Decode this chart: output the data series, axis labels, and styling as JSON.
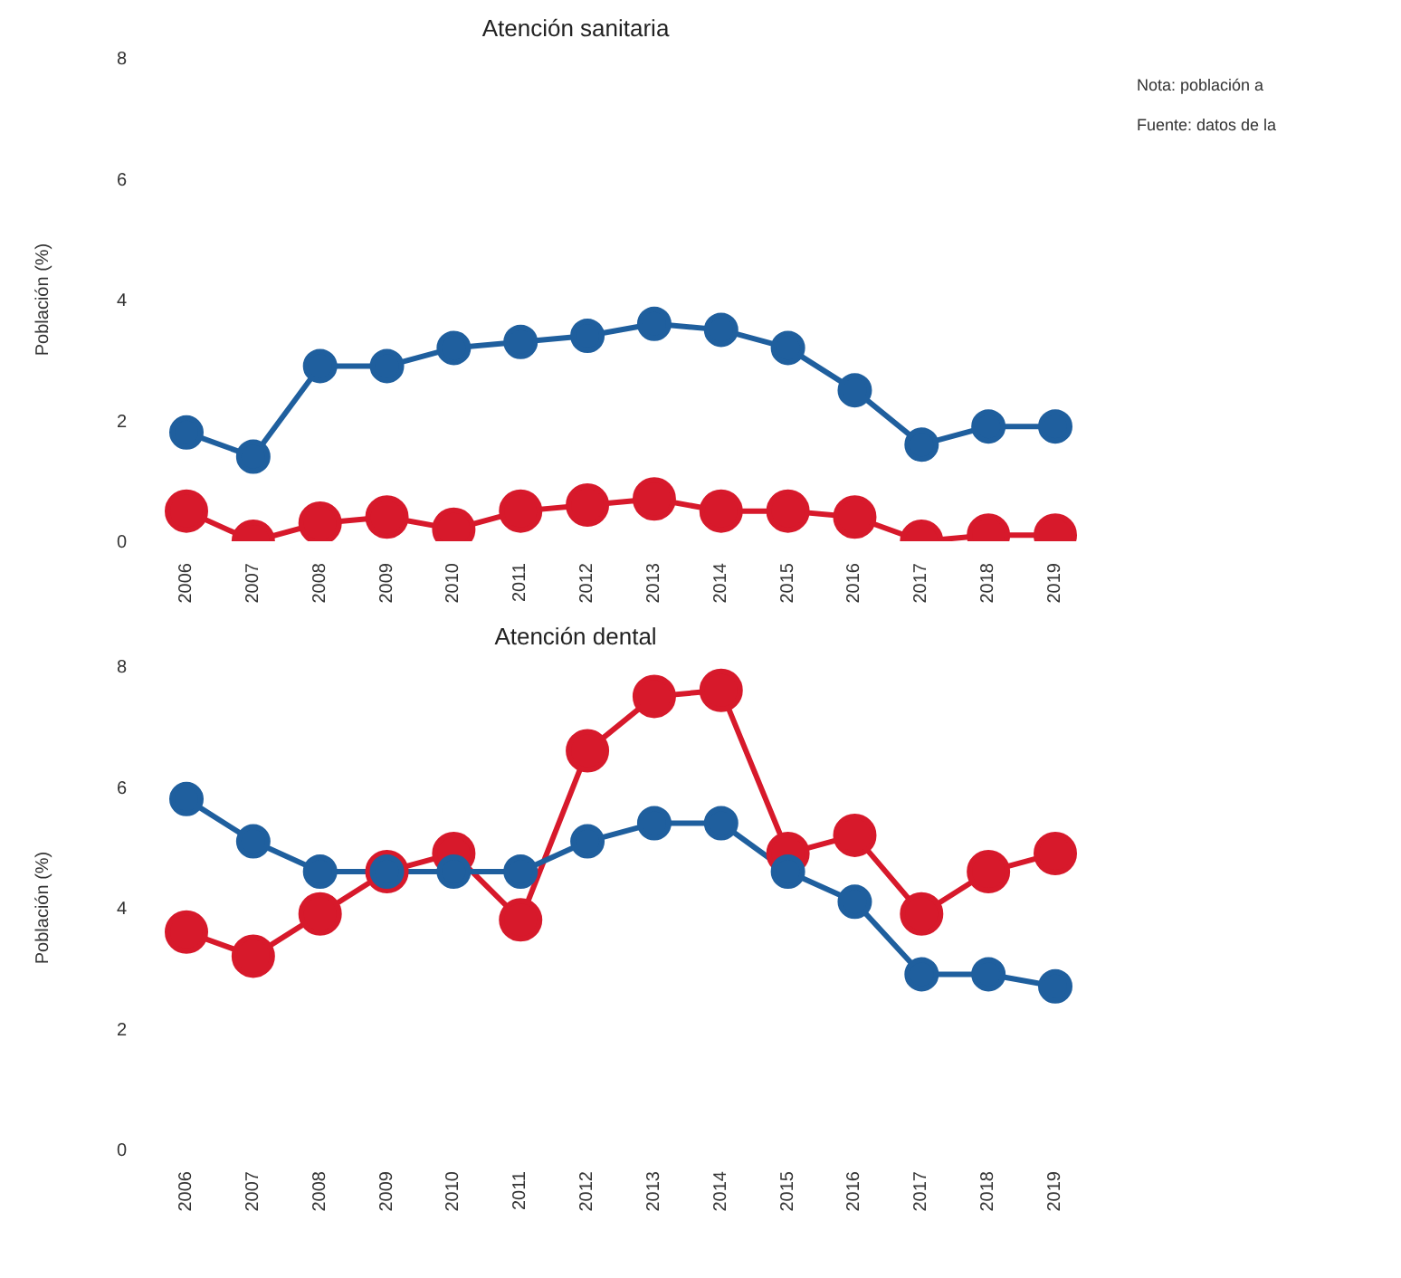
{
  "chart_data": [
    {
      "type": "line",
      "title": "Atención sanitaria",
      "ylabel": "Población (%)",
      "categories": [
        "2006",
        "2007",
        "2008",
        "2009",
        "2010",
        "2011",
        "2012",
        "2013",
        "2014",
        "2015",
        "2016",
        "2017",
        "2018",
        "2019"
      ],
      "series": [
        {
          "color": "#1f5f9e",
          "values": [
            1.8,
            1.4,
            2.9,
            2.9,
            3.2,
            3.3,
            3.4,
            3.6,
            3.5,
            3.2,
            2.5,
            1.6,
            1.9,
            1.9
          ]
        },
        {
          "color": "#d7192b",
          "values": [
            0.5,
            0,
            0.3,
            0.4,
            0.2,
            0.5,
            0.6,
            0.7,
            0.5,
            0.5,
            0.4,
            0,
            0.1,
            0.1
          ]
        }
      ],
      "ylim": [
        0,
        8
      ],
      "yticks": [
        0,
        2,
        4,
        6,
        8
      ],
      "grid": false,
      "legend": false,
      "marker": "circle",
      "line_style": "solid",
      "annotations": [
        "Nota: población a",
        "Fuente: datos de la"
      ]
    },
    {
      "type": "line",
      "title": "Atención dental",
      "ylabel": "Población (%)",
      "categories": [
        "2006",
        "2007",
        "2008",
        "2009",
        "2010",
        "2011",
        "2012",
        "2013",
        "2014",
        "2015",
        "2016",
        "2017",
        "2018",
        "2019"
      ],
      "series": [
        {
          "color": "#1f5f9e",
          "values": [
            5.8,
            5.1,
            4.6,
            4.6,
            4.6,
            4.6,
            5.1,
            5.4,
            5.4,
            4.6,
            4.1,
            2.9,
            2.9,
            2.7
          ]
        },
        {
          "color": "#d7192b",
          "values": [
            3.6,
            3.2,
            3.9,
            4.6,
            4.9,
            3.8,
            6.6,
            7.5,
            7.6,
            4.9,
            5.2,
            3.9,
            4.6,
            4.9
          ]
        }
      ],
      "ylim": [
        0,
        8
      ],
      "yticks": [
        0,
        2,
        4,
        6,
        8
      ],
      "grid": false,
      "legend": false,
      "marker": "circle",
      "line_style": "solid"
    }
  ]
}
